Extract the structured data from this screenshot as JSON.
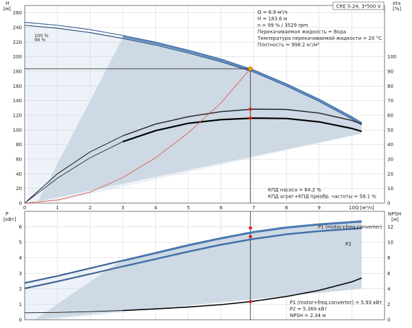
{
  "chart_data": [
    {
      "type": "line",
      "title": "CRE 5-24, 3*500 V",
      "y_left_label": "H\n[м]",
      "y_right_label": "eta\n[%]",
      "x_label": "Q [м³/ч]",
      "xlim": [
        0,
        11
      ],
      "ylim_left": [
        0,
        270
      ],
      "ylim_right": [
        0,
        135
      ],
      "x_ticks": [
        0,
        1,
        2,
        3,
        4,
        5,
        6,
        7,
        8,
        9,
        10
      ],
      "y_left_ticks": [
        0,
        20,
        40,
        60,
        80,
        100,
        120,
        140,
        160,
        180,
        200,
        220,
        240,
        260
      ],
      "y_right_ticks": [
        0,
        10,
        20,
        30,
        40,
        50,
        60,
        70,
        80,
        90,
        100
      ],
      "grid": true,
      "series": [
        {
          "name": "",
          "axis": "left",
          "role": "head-100",
          "x": [
            0,
            1,
            2,
            3,
            4,
            5,
            6,
            7,
            8,
            9,
            10,
            10.3
          ],
          "y": [
            247,
            243,
            237,
            229,
            220,
            209,
            197,
            182,
            163,
            142,
            118,
            110
          ]
        },
        {
          "name": "",
          "axis": "left",
          "role": "head-99",
          "x": [
            0,
            1,
            2,
            3,
            4,
            5,
            6,
            7,
            8,
            9,
            10,
            10.3
          ],
          "y": [
            243,
            239,
            233,
            225,
            216,
            205,
            193,
            179,
            160,
            139,
            115,
            107
          ]
        },
        {
          "name": "",
          "axis": "right",
          "role": "efficiency-pump",
          "x": [
            0,
            1,
            2,
            3,
            4,
            5,
            6,
            7,
            8,
            9,
            10,
            10.3
          ],
          "y": [
            0,
            20,
            35,
            46,
            54,
            59,
            62.5,
            64.2,
            64,
            61.5,
            56.5,
            54
          ]
        },
        {
          "name": "",
          "axis": "right",
          "role": "efficiency-total",
          "x": [
            0,
            1,
            2,
            3,
            4,
            5,
            6,
            7,
            8,
            9,
            10,
            10.3
          ],
          "y": [
            0,
            17,
            31,
            42,
            49.5,
            54.5,
            57,
            58.1,
            57.8,
            55.5,
            51,
            49
          ]
        },
        {
          "name": "",
          "axis": "left",
          "role": "system-curve",
          "x": [
            0,
            1,
            2,
            3,
            4,
            5,
            6,
            6.9
          ],
          "y": [
            0,
            4,
            15,
            35,
            62,
            96,
            137,
            183.6
          ]
        }
      ],
      "duty_point": {
        "q": 6.9,
        "h": 183.6,
        "eta_pump": 64.2,
        "eta_total": 58.1
      },
      "info_text": [
        "Q = 6.9 м³/ч",
        "H = 183.6 м",
        "n = 99 % / 3529 rpm",
        "Перекачиваемая жидкость = Вода",
        "Температура перекачиваемой жидкости = 20 °C",
        "Плотность = 998.2 кг/м³"
      ],
      "eff_text": [
        "КПД насоса = 64.2 %",
        "КПД агрег+КПД преобр. частоты = 58.1 %"
      ],
      "curve_labels": [
        "100 %",
        "99 %"
      ]
    },
    {
      "type": "line",
      "y_left_label": "P\n[кВт]",
      "y_right_label": "NPSH\n[м]",
      "xlim": [
        0,
        11
      ],
      "ylim_left": [
        0,
        7
      ],
      "ylim_right": [
        0,
        14
      ],
      "y_left_ticks": [
        0,
        1,
        2,
        3,
        4,
        5,
        6
      ],
      "y_right_ticks": [
        0,
        2,
        4,
        6,
        8,
        10,
        12
      ],
      "grid": true,
      "series": [
        {
          "name": "P1 (motor+freq.converter)",
          "axis": "left",
          "role": "p1-100",
          "x": [
            0,
            1,
            2,
            3,
            4,
            5,
            6,
            7,
            8,
            9,
            10,
            10.3
          ],
          "y": [
            2.4,
            2.85,
            3.35,
            3.85,
            4.35,
            4.85,
            5.3,
            5.7,
            6.0,
            6.2,
            6.35,
            6.4
          ]
        },
        {
          "name": "",
          "axis": "left",
          "role": "p1-99",
          "x": [
            0,
            1,
            2,
            3,
            4,
            5,
            6,
            7,
            8,
            9,
            10,
            10.3
          ],
          "y": [
            2.35,
            2.8,
            3.3,
            3.8,
            4.3,
            4.8,
            5.25,
            5.63,
            5.93,
            6.12,
            6.27,
            6.3
          ]
        },
        {
          "name": "P2",
          "axis": "left",
          "role": "p2-100",
          "x": [
            0,
            1,
            2,
            3,
            4,
            5,
            6,
            7,
            8,
            9,
            10,
            10.3
          ],
          "y": [
            2.05,
            2.5,
            2.98,
            3.47,
            3.95,
            4.43,
            4.88,
            5.25,
            5.55,
            5.75,
            5.9,
            5.95
          ]
        },
        {
          "name": "",
          "axis": "left",
          "role": "p2-99",
          "x": [
            0,
            1,
            2,
            3,
            4,
            5,
            6,
            7,
            8,
            9,
            10,
            10.3
          ],
          "y": [
            2.0,
            2.45,
            2.93,
            3.42,
            3.9,
            4.38,
            4.83,
            5.2,
            5.5,
            5.7,
            5.84,
            5.88
          ]
        },
        {
          "name": "",
          "axis": "right",
          "role": "npsh",
          "x": [
            0,
            1,
            2,
            3,
            4,
            5,
            6,
            6.9,
            8,
            9,
            10,
            10.3
          ],
          "y": [
            0.9,
            0.95,
            1.05,
            1.2,
            1.4,
            1.65,
            1.95,
            2.34,
            3.0,
            3.8,
            4.9,
            5.4
          ]
        }
      ],
      "duty_point": {
        "p1": 5.93,
        "p2": 5.369,
        "npsh": 2.34
      },
      "legend_text": [
        "P1 (motor+freq.converter) = 5.93 кВт",
        "P2 = 5.369 кВт",
        "NPSH = 2.34 м"
      ]
    }
  ]
}
